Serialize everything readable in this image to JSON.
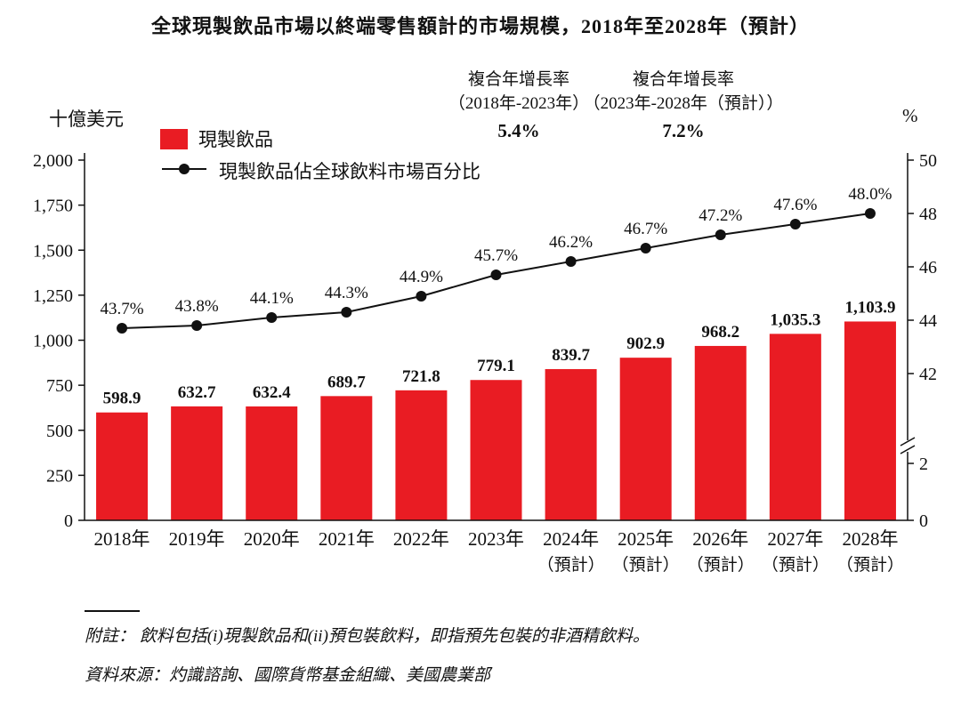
{
  "title": "全球現製飲品市場以終端零售額計的市場規模，2018年至2028年（預計）",
  "axis_units": {
    "left": "十億美元",
    "right": "%"
  },
  "legend": {
    "bar": "現製飲品",
    "line": "現製飲品佔全球飲料市場百分比"
  },
  "cagr_annotations": [
    {
      "title": "複合年增長率",
      "period": "（2018年-2023年）",
      "value": "5.4%"
    },
    {
      "title": "複合年增長率",
      "period": "（2023年-2028年（預計））",
      "value": "7.2%"
    }
  ],
  "footnote": "附註： 飲料包括(i)現製飲品和(ii)預包裝飲料，即指預先包裝的非酒精飲料。",
  "source": "資料來源：灼識諮詢、國際貨幣基金組織、美國農業部",
  "colors": {
    "bar": "#e91c23",
    "line": "#111111"
  },
  "chart_data": {
    "type": "bar+line",
    "title": "全球現製飲品市場以終端零售額計的市場規模，2018年至2028年（預計）",
    "categories": [
      "2018年",
      "2019年",
      "2020年",
      "2021年",
      "2022年",
      "2023年",
      "2024年",
      "2025年",
      "2026年",
      "2027年",
      "2028年"
    ],
    "category_sublabels": [
      "",
      "",
      "",
      "",
      "",
      "",
      "（預計）",
      "（預計）",
      "（預計）",
      "（預計）",
      "（預計）"
    ],
    "series": [
      {
        "name": "現製飲品",
        "type": "bar",
        "axis": "left",
        "unit": "十億美元",
        "values": [
          598.9,
          632.7,
          632.4,
          689.7,
          721.8,
          779.1,
          839.7,
          902.9,
          968.2,
          1035.3,
          1103.9
        ],
        "labels": [
          "598.9",
          "632.7",
          "632.4",
          "689.7",
          "721.8",
          "779.1",
          "839.7",
          "902.9",
          "968.2",
          "1,035.3",
          "1,103.9"
        ]
      },
      {
        "name": "現製飲品佔全球飲料市場百分比",
        "type": "line",
        "axis": "right",
        "unit": "%",
        "values": [
          43.7,
          43.8,
          44.1,
          44.3,
          44.9,
          45.7,
          46.2,
          46.7,
          47.2,
          47.6,
          48.0
        ],
        "labels": [
          "43.7%",
          "43.8%",
          "44.1%",
          "44.3%",
          "44.9%",
          "45.7%",
          "46.2%",
          "46.7%",
          "47.2%",
          "47.6%",
          "48.0%"
        ]
      }
    ],
    "left_axis": {
      "min": 0,
      "max": 2000,
      "tick_labels": [
        "0",
        "250",
        "500",
        "750",
        "1,000",
        "1,250",
        "1,500",
        "1,750",
        "2,000"
      ]
    },
    "right_axis": {
      "upper_ticks": [
        "50",
        "48",
        "46",
        "44",
        "42"
      ],
      "lower_ticks": [
        "2",
        "0"
      ],
      "axis_break": true
    },
    "grid": false,
    "legend_position": "top-left"
  }
}
